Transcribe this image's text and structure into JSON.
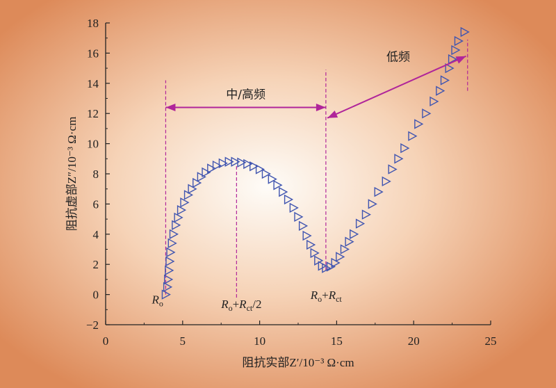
{
  "chart_data": {
    "type": "scatter",
    "title": "",
    "xlabel": "阻抗实部Z′/10⁻³ Ω·cm",
    "ylabel": "阻抗虚部Z″/10⁻³ Ω·cm",
    "xlim": [
      0,
      25
    ],
    "ylim": [
      -2,
      18
    ],
    "xticks": [
      "0",
      "5",
      "10",
      "15",
      "20",
      "25"
    ],
    "yticks": [
      "−2",
      "0",
      "2",
      "4",
      "6",
      "8",
      "10",
      "12",
      "14",
      "16",
      "18"
    ],
    "marker": "triangle-right-open",
    "series": [
      {
        "values": [
          [
            3.9,
            0.0
          ],
          [
            4.0,
            0.5
          ],
          [
            4.05,
            1.0
          ],
          [
            4.1,
            1.6
          ],
          [
            4.15,
            2.2
          ],
          [
            4.2,
            2.8
          ],
          [
            4.3,
            3.4
          ],
          [
            4.4,
            4.0
          ],
          [
            4.55,
            4.6
          ],
          [
            4.7,
            5.1
          ],
          [
            4.9,
            5.6
          ],
          [
            5.1,
            6.1
          ],
          [
            5.35,
            6.6
          ],
          [
            5.6,
            7.0
          ],
          [
            5.9,
            7.4
          ],
          [
            6.2,
            7.8
          ],
          [
            6.5,
            8.1
          ],
          [
            6.85,
            8.35
          ],
          [
            7.2,
            8.55
          ],
          [
            7.6,
            8.7
          ],
          [
            8.0,
            8.8
          ],
          [
            8.4,
            8.8
          ],
          [
            8.8,
            8.75
          ],
          [
            9.2,
            8.65
          ],
          [
            9.6,
            8.5
          ],
          [
            10.0,
            8.3
          ],
          [
            10.4,
            8.0
          ],
          [
            10.8,
            7.65
          ],
          [
            11.15,
            7.25
          ],
          [
            11.5,
            6.8
          ],
          [
            11.85,
            6.3
          ],
          [
            12.2,
            5.75
          ],
          [
            12.5,
            5.15
          ],
          [
            12.8,
            4.55
          ],
          [
            13.05,
            3.9
          ],
          [
            13.3,
            3.3
          ],
          [
            13.55,
            2.75
          ],
          [
            13.8,
            2.25
          ],
          [
            14.05,
            1.9
          ],
          [
            14.3,
            1.75
          ],
          [
            14.6,
            1.85
          ],
          [
            14.9,
            2.1
          ],
          [
            15.2,
            2.5
          ],
          [
            15.5,
            3.0
          ],
          [
            15.8,
            3.5
          ],
          [
            16.1,
            4.0
          ],
          [
            16.5,
            4.7
          ],
          [
            16.9,
            5.3
          ],
          [
            17.3,
            6.0
          ],
          [
            17.7,
            6.8
          ],
          [
            18.2,
            7.5
          ],
          [
            18.6,
            8.3
          ],
          [
            19.0,
            9.0
          ],
          [
            19.4,
            9.7
          ],
          [
            19.9,
            10.5
          ],
          [
            20.3,
            11.3
          ],
          [
            20.8,
            12.0
          ],
          [
            21.3,
            12.8
          ],
          [
            21.7,
            13.5
          ],
          [
            22.0,
            14.2
          ],
          [
            22.3,
            15.0
          ],
          [
            22.5,
            15.6
          ],
          [
            22.7,
            16.2
          ],
          [
            22.9,
            16.8
          ],
          [
            23.3,
            17.4
          ]
        ]
      }
    ],
    "guides": [
      {
        "x": 3.9,
        "y_from": 0.0,
        "y_to": 14.2
      },
      {
        "x": 8.5,
        "y_from": -0.2,
        "y_to": 8.6
      },
      {
        "x": 14.3,
        "y_from": 1.6,
        "y_to": 14.9
      },
      {
        "x": 23.5,
        "y_from": 13.5,
        "y_to": 16.9
      }
    ],
    "annotations": [
      {
        "text": "中/高频",
        "type": "double-arrow",
        "x1": 3.9,
        "x2": 14.3,
        "y": 12.4,
        "label_x": 9.1,
        "label_y": 13.0
      },
      {
        "text": "低频",
        "type": "double-arrow",
        "x1": 14.4,
        "y1": 11.7,
        "x2": 23.4,
        "y2": 15.8,
        "label_x": 19.0,
        "label_y": 15.5
      }
    ],
    "point_labels": [
      {
        "id": "ro",
        "main": "R",
        "sub": "o",
        "x": 3.0,
        "y": -0.6
      },
      {
        "id": "ro-rct-half",
        "main": "R",
        "sub": "o",
        "mid": "+R",
        "sub2": "ct",
        "tail": "/2",
        "x": 7.5,
        "y": -0.9
      },
      {
        "id": "ro-rct",
        "main": "R",
        "sub": "o",
        "mid": "+R",
        "sub2": "ct",
        "tail": "",
        "x": 13.3,
        "y": -0.3
      }
    ],
    "grid": false,
    "background": {
      "center": "#fefcf8",
      "mid": "#f6d3b7",
      "edge": "#dd8a59"
    },
    "colors": {
      "marker": "#4055b0",
      "guide": "#b0259a",
      "arrow": "#b0259a",
      "axis": "#222222"
    }
  }
}
